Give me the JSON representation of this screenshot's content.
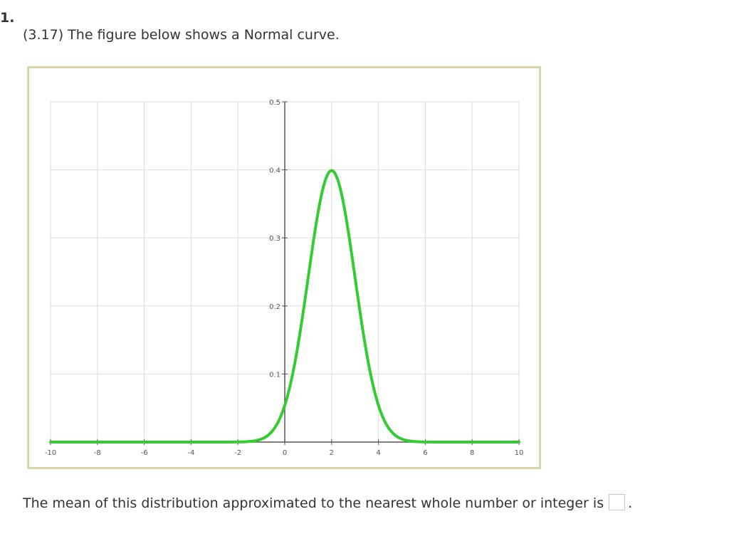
{
  "question": {
    "number": "1.",
    "text": "(3.17) The figure below shows a Normal curve."
  },
  "answer": {
    "prompt": "The mean of this distribution approximated to the nearest whole number or integer is",
    "value": "",
    "suffix": "."
  },
  "chart_data": {
    "type": "line",
    "title": "",
    "xlabel": "",
    "ylabel": "",
    "xlim": [
      -10,
      10
    ],
    "ylim": [
      0,
      0.5
    ],
    "xticks": [
      -10,
      -8,
      -6,
      -4,
      -2,
      0,
      2,
      4,
      6,
      8,
      10
    ],
    "xtick_labels": [
      "-10",
      "-8",
      "-6",
      "-4",
      "-2",
      "0",
      "2",
      "4",
      "6",
      "8",
      "10"
    ],
    "yticks": [
      0.1,
      0.2,
      0.3,
      0.4,
      0.5
    ],
    "ytick_labels": [
      "0.1",
      "0.2",
      "0.3",
      "0.4",
      "0.5"
    ],
    "grid": true,
    "series": [
      {
        "color": "#33cc33",
        "distribution": "normal",
        "mean": 2,
        "sd": 1,
        "x": [
          -10,
          -5,
          -3,
          -2,
          -1,
          -0.5,
          0,
          0.5,
          1,
          1.5,
          2,
          2.5,
          3,
          3.5,
          4,
          5,
          6,
          7,
          10
        ],
        "y": [
          0.0,
          0.0,
          0.0,
          0.0001,
          0.0044,
          0.0175,
          0.054,
          0.1295,
          0.242,
          0.3521,
          0.3989,
          0.3521,
          0.242,
          0.1295,
          0.054,
          0.0044,
          0.0001,
          0.0,
          0.0
        ]
      }
    ]
  }
}
